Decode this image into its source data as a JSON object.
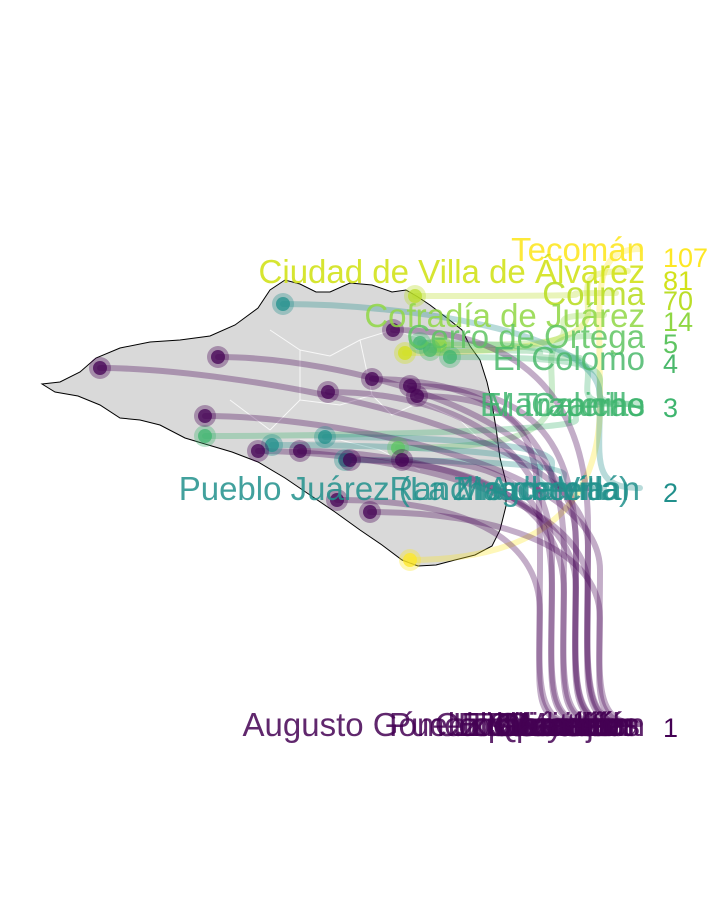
{
  "colors": {
    "v1": "#440154",
    "v2": "#21908c",
    "v3": "#3fb56f",
    "v4": "#4ab86b",
    "v5": "#5ec461",
    "v14": "#8fd744",
    "v70": "#bade28",
    "v81": "#d2e21b",
    "v107": "#fde725",
    "land": "#d9d9d9"
  },
  "map_data": {
    "region": "Colima",
    "places": [
      {
        "name": "Tecomán",
        "value": 107,
        "color": "#fde725"
      },
      {
        "name": "Ciudad de Villa de Álvarez",
        "value": 81,
        "color": "#d2e21b"
      },
      {
        "name": "Colima",
        "value": 70,
        "color": "#bade28"
      },
      {
        "name": "Cofradía de Juárez",
        "value": 14,
        "color": "#8fd744"
      },
      {
        "name": "Cerro de Ortega",
        "value": 5,
        "color": "#5ec461"
      },
      {
        "name": "El Colomo",
        "value": 4,
        "color": "#4ab86b"
      },
      {
        "name": "Caleras",
        "value": 3,
        "color": "#3fb56f"
      },
      {
        "name": "El Trapiche",
        "value": 3,
        "color": "#3fb56f"
      },
      {
        "name": "Manzanillo",
        "value": 3,
        "color": "#3fb56f"
      },
      {
        "name": "Zinacamitlán",
        "value": 2,
        "color": "#21908c"
      },
      {
        "name": "Pueblo Juárez (La Magdalena)",
        "value": 2,
        "color": "#21908c"
      },
      {
        "name": "Rancho de Villa",
        "value": 2,
        "color": "#21908c"
      },
      {
        "name": "Armería",
        "value": 2,
        "color": "#21908c"
      },
      {
        "name": "Augusto Gómez Villanueva",
        "value": 1,
        "color": "#440154"
      },
      {
        "name": "Pueblo Juárez",
        "value": 1,
        "color": "#440154"
      },
      {
        "name": "Coquimatlán",
        "value": 1,
        "color": "#440154"
      },
      {
        "name": "Ixtlahuacán",
        "value": 1,
        "color": "#440154"
      },
      {
        "name": "Comala",
        "value": 1,
        "color": "#440154"
      },
      {
        "name": "Minatitlán",
        "value": 1,
        "color": "#440154"
      },
      {
        "name": "Cuyutlán",
        "value": 1,
        "color": "#440154"
      },
      {
        "name": "Suchitlán",
        "value": 1,
        "color": "#440154"
      },
      {
        "name": "Tepames",
        "value": 1,
        "color": "#440154"
      },
      {
        "name": "Ticuizitán",
        "value": 1,
        "color": "#440154"
      },
      {
        "name": "Los Asmoles",
        "value": 1,
        "color": "#440154"
      },
      {
        "name": "Madrid",
        "value": 1,
        "color": "#440154"
      },
      {
        "name": "Quesería",
        "value": 1,
        "color": "#440154"
      },
      {
        "name": "El Naranjo",
        "value": 1,
        "color": "#440154"
      }
    ],
    "value_labels": [
      "107",
      "81",
      "70",
      "14",
      "5",
      "4",
      "3",
      "2",
      "1"
    ]
  }
}
